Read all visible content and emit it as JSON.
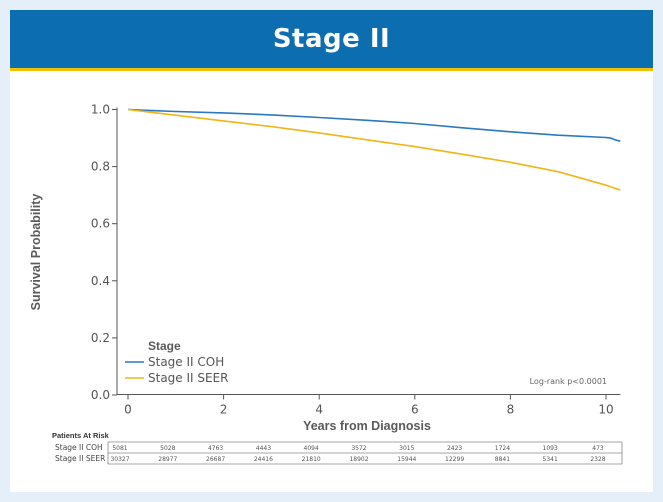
{
  "header": {
    "title": "Stage II"
  },
  "colors": {
    "header_bg": "#0c6db0",
    "header_rule": "#f2c200",
    "frame_bg": "#e4eff9"
  },
  "chart_data": {
    "type": "line",
    "title": "",
    "xlabel": "Years from Diagnosis",
    "ylabel": "Survival Probability",
    "xlim": [
      0,
      10.3
    ],
    "ylim": [
      0,
      1.0
    ],
    "x_ticks": [
      0,
      2,
      4,
      6,
      8,
      10
    ],
    "x_tick_labels": [
      "0",
      "2",
      "4",
      "6",
      "8",
      "10"
    ],
    "y_ticks": [
      0,
      0.2,
      0.4,
      0.6,
      0.8,
      1.0
    ],
    "y_tick_labels": [
      "0.0",
      "0.2",
      "0.4",
      "0.6",
      "0.8",
      "1.0"
    ],
    "grid": false,
    "legend": {
      "title": "Stage",
      "position": "bottom-left"
    },
    "annotation": "Log-rank p<0.0001",
    "series": [
      {
        "name": "Stage II COH",
        "color": "#2b78c2",
        "x": [
          0,
          0.5,
          1,
          2,
          3,
          4,
          5,
          6,
          7,
          8,
          9,
          10,
          10.1,
          10.2,
          10.3
        ],
        "y": [
          1.0,
          0.996,
          0.993,
          0.988,
          0.981,
          0.972,
          0.962,
          0.951,
          0.936,
          0.922,
          0.91,
          0.902,
          0.9,
          0.893,
          0.889
        ]
      },
      {
        "name": "Stage II SEER",
        "color": "#f2b515",
        "x": [
          0,
          0.5,
          1,
          2,
          3,
          4,
          5,
          6,
          7,
          8,
          9,
          10,
          10.3
        ],
        "y": [
          1.0,
          0.99,
          0.98,
          0.96,
          0.94,
          0.918,
          0.894,
          0.87,
          0.843,
          0.815,
          0.782,
          0.735,
          0.718
        ]
      }
    ],
    "risk_table": {
      "title": "Patients At Risk",
      "times": [
        0,
        1,
        2,
        3,
        4,
        5,
        6,
        7,
        8,
        9,
        10
      ],
      "rows": [
        {
          "label": "Stage II COH",
          "values": [
            "5081",
            "5028",
            "4763",
            "4443",
            "4094",
            "3572",
            "3015",
            "2423",
            "1724",
            "1093",
            "473"
          ]
        },
        {
          "label": "Stage II SEER",
          "values": [
            "30327",
            "28977",
            "26687",
            "24416",
            "21810",
            "18902",
            "15944",
            "12299",
            "8841",
            "5341",
            "2328"
          ]
        }
      ]
    }
  }
}
